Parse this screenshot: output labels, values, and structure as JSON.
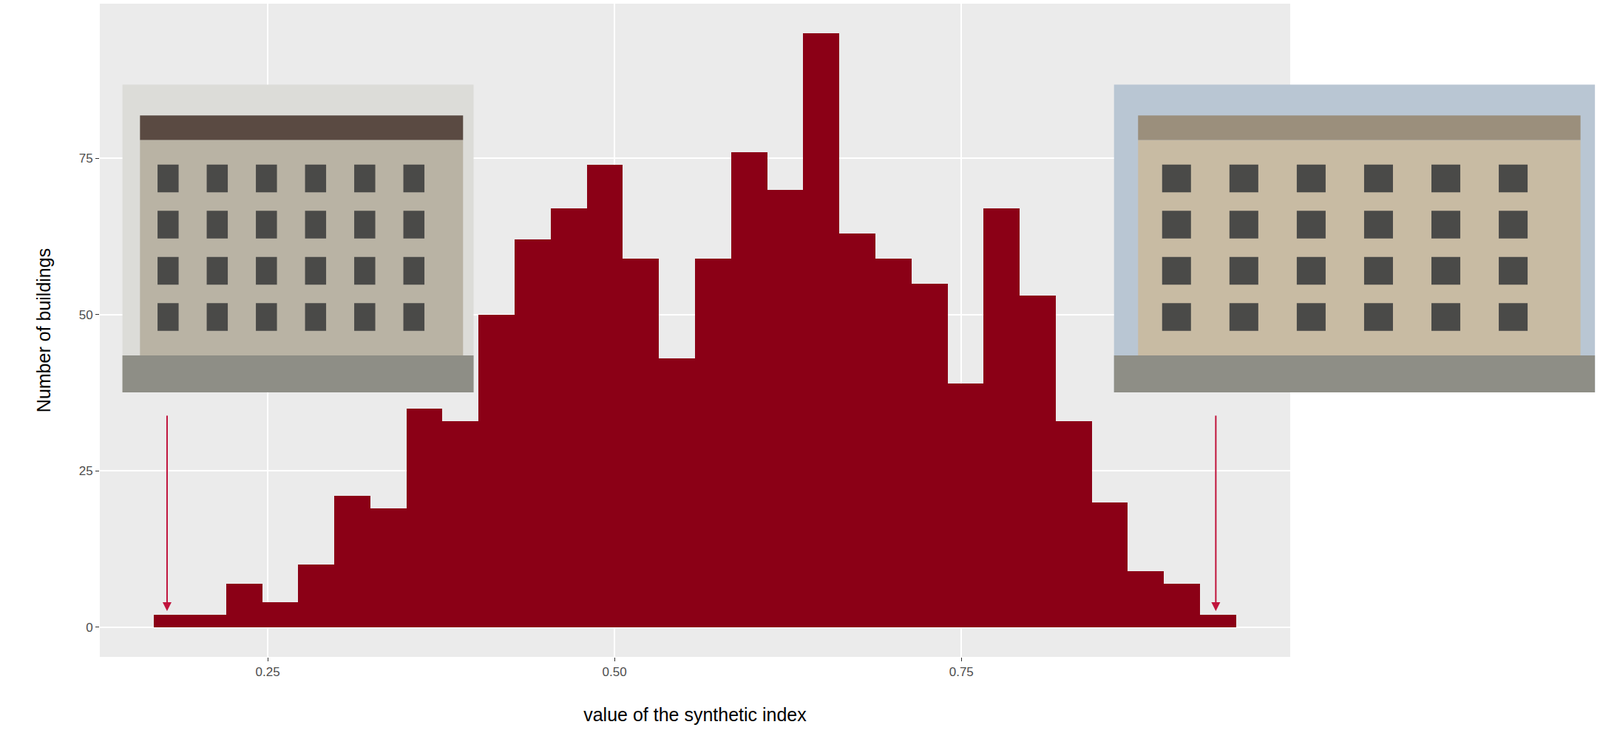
{
  "chart_data": {
    "type": "histogram",
    "x_label": "value of the synthetic index",
    "y_label": "Number of buildings",
    "bins": [
      0.168,
      0.194,
      0.22,
      0.246,
      0.272,
      0.298,
      0.324,
      0.35,
      0.376,
      0.402,
      0.428,
      0.454,
      0.48,
      0.506,
      0.532,
      0.558,
      0.584,
      0.61,
      0.636,
      0.662,
      0.688,
      0.714,
      0.74,
      0.766,
      0.792,
      0.818,
      0.844,
      0.87,
      0.896,
      0.922,
      0.948
    ],
    "values": [
      2,
      2,
      7,
      4,
      10,
      21,
      19,
      35,
      33,
      50,
      62,
      67,
      74,
      59,
      43,
      59,
      76,
      70,
      95,
      63,
      59,
      55,
      39,
      67,
      53,
      33,
      20,
      9,
      7,
      2
    ],
    "color": "#8b0016",
    "xlim": [
      0.129,
      0.987
    ],
    "ylim": [
      -4.75,
      99.75
    ],
    "xticks": [
      {
        "value": 0.25,
        "label": "0.25"
      },
      {
        "value": 0.5,
        "label": "0.50"
      },
      {
        "value": 0.75,
        "label": "0.75"
      }
    ],
    "yticks": [
      0,
      25,
      50,
      75
    ],
    "grid": true
  }
}
